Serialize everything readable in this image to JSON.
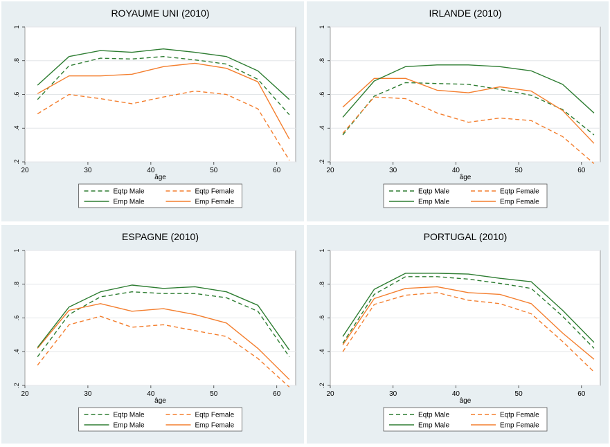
{
  "chart_data": [
    {
      "type": "line",
      "title": "ROYAUME UNI (2010)",
      "xlabel": "âge",
      "ylabel": "",
      "xlim": [
        20,
        63
      ],
      "ylim": [
        0.2,
        1.0
      ],
      "x": [
        22,
        27,
        32,
        37,
        42,
        47,
        52,
        57,
        62
      ],
      "xticks": [
        "20",
        "30",
        "40",
        "50",
        "60"
      ],
      "yticks": [
        ".2",
        ".4",
        ".6",
        ".8",
        "1"
      ],
      "grid": "horizontal",
      "legend_position": "bottom",
      "series": [
        {
          "name": "Eqtp Male",
          "color": "#2e7d32",
          "dash": "dashed",
          "values": [
            0.57,
            0.77,
            0.815,
            0.81,
            0.825,
            0.805,
            0.78,
            0.69,
            0.48
          ]
        },
        {
          "name": "Eqtp Female",
          "color": "#f47f2f",
          "dash": "dashed",
          "values": [
            0.485,
            0.6,
            0.575,
            0.545,
            0.585,
            0.62,
            0.6,
            0.515,
            0.21
          ]
        },
        {
          "name": "Emp Male",
          "color": "#2e7d32",
          "dash": "solid",
          "values": [
            0.655,
            0.825,
            0.86,
            0.85,
            0.87,
            0.85,
            0.825,
            0.74,
            0.57
          ]
        },
        {
          "name": "Emp Female",
          "color": "#f47f2f",
          "dash": "solid",
          "values": [
            0.605,
            0.71,
            0.71,
            0.72,
            0.765,
            0.785,
            0.755,
            0.675,
            0.335
          ]
        }
      ]
    },
    {
      "type": "line",
      "title": "IRLANDE (2010)",
      "xlabel": "âge",
      "ylabel": "",
      "xlim": [
        20,
        63
      ],
      "ylim": [
        0.2,
        1.0
      ],
      "x": [
        22,
        27,
        32,
        37,
        42,
        47,
        52,
        57,
        62
      ],
      "xticks": [
        "20",
        "30",
        "40",
        "50",
        "60"
      ],
      "yticks": [
        ".2",
        ".4",
        ".6",
        ".8",
        "1"
      ],
      "grid": "horizontal",
      "legend_position": "bottom",
      "series": [
        {
          "name": "Eqtp Male",
          "color": "#2e7d32",
          "dash": "dashed",
          "values": [
            0.36,
            0.59,
            0.67,
            0.665,
            0.66,
            0.63,
            0.595,
            0.51,
            0.36
          ]
        },
        {
          "name": "Eqtp Female",
          "color": "#f47f2f",
          "dash": "dashed",
          "values": [
            0.37,
            0.585,
            0.575,
            0.49,
            0.435,
            0.46,
            0.445,
            0.35,
            0.19
          ]
        },
        {
          "name": "Emp Male",
          "color": "#2e7d32",
          "dash": "solid",
          "values": [
            0.465,
            0.68,
            0.765,
            0.775,
            0.775,
            0.765,
            0.74,
            0.66,
            0.49
          ]
        },
        {
          "name": "Emp Female",
          "color": "#f47f2f",
          "dash": "solid",
          "values": [
            0.525,
            0.695,
            0.695,
            0.625,
            0.61,
            0.645,
            0.62,
            0.505,
            0.31
          ]
        }
      ]
    },
    {
      "type": "line",
      "title": "ESPAGNE (2010)",
      "xlabel": "âge",
      "ylabel": "",
      "xlim": [
        20,
        63
      ],
      "ylim": [
        0.2,
        1.0
      ],
      "x": [
        22,
        27,
        32,
        37,
        42,
        47,
        52,
        57,
        62
      ],
      "xticks": [
        "20",
        "30",
        "40",
        "50",
        "60"
      ],
      "yticks": [
        ".2",
        ".4",
        ".6",
        ".8",
        "1"
      ],
      "grid": "horizontal",
      "legend_position": "bottom",
      "series": [
        {
          "name": "Eqtp Male",
          "color": "#2e7d32",
          "dash": "dashed",
          "values": [
            0.37,
            0.62,
            0.725,
            0.755,
            0.745,
            0.745,
            0.72,
            0.64,
            0.37
          ]
        },
        {
          "name": "Eqtp Female",
          "color": "#f47f2f",
          "dash": "dashed",
          "values": [
            0.32,
            0.56,
            0.61,
            0.545,
            0.56,
            0.525,
            0.49,
            0.36,
            0.19
          ]
        },
        {
          "name": "Emp Male",
          "color": "#2e7d32",
          "dash": "solid",
          "values": [
            0.425,
            0.665,
            0.755,
            0.795,
            0.775,
            0.785,
            0.755,
            0.675,
            0.41
          ]
        },
        {
          "name": "Emp Female",
          "color": "#f47f2f",
          "dash": "solid",
          "values": [
            0.42,
            0.645,
            0.685,
            0.64,
            0.655,
            0.62,
            0.57,
            0.42,
            0.235
          ]
        }
      ]
    },
    {
      "type": "line",
      "title": "PORTUGAL (2010)",
      "xlabel": "âge",
      "ylabel": "",
      "xlim": [
        20,
        63
      ],
      "ylim": [
        0.2,
        1.0
      ],
      "x": [
        22,
        27,
        32,
        37,
        42,
        47,
        52,
        57,
        62
      ],
      "xticks": [
        "20",
        "30",
        "40",
        "50",
        "60"
      ],
      "yticks": [
        ".2",
        ".4",
        ".6",
        ".8",
        "1"
      ],
      "grid": "horizontal",
      "legend_position": "bottom",
      "series": [
        {
          "name": "Eqtp Male",
          "color": "#2e7d32",
          "dash": "dashed",
          "values": [
            0.45,
            0.74,
            0.845,
            0.845,
            0.83,
            0.805,
            0.775,
            0.61,
            0.42
          ]
        },
        {
          "name": "Eqtp Female",
          "color": "#f47f2f",
          "dash": "dashed",
          "values": [
            0.4,
            0.68,
            0.735,
            0.75,
            0.705,
            0.685,
            0.625,
            0.46,
            0.28
          ]
        },
        {
          "name": "Emp Male",
          "color": "#2e7d32",
          "dash": "solid",
          "values": [
            0.49,
            0.77,
            0.865,
            0.865,
            0.86,
            0.835,
            0.815,
            0.645,
            0.455
          ]
        },
        {
          "name": "Emp Female",
          "color": "#f47f2f",
          "dash": "solid",
          "values": [
            0.44,
            0.715,
            0.775,
            0.785,
            0.75,
            0.74,
            0.685,
            0.51,
            0.355
          ]
        }
      ]
    }
  ]
}
